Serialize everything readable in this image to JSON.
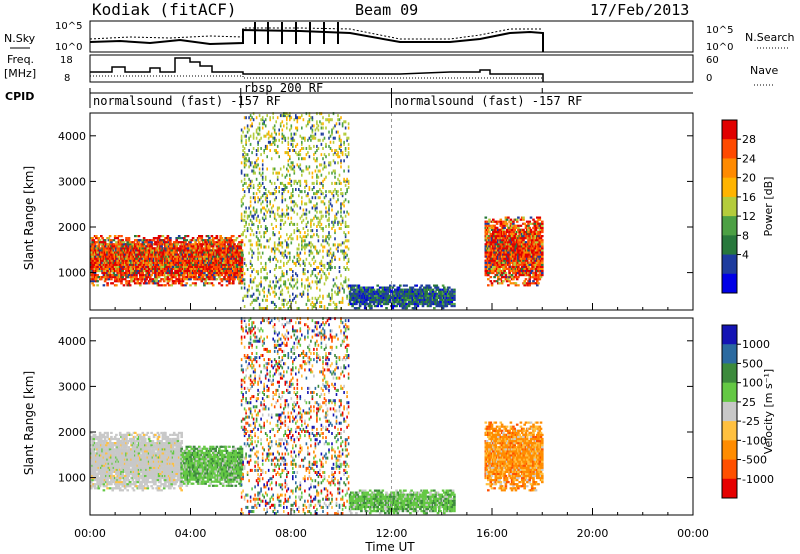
{
  "header": {
    "station": "Kodiak (fitACF)",
    "beam": "Beam 09",
    "date": "17/Feb/2013"
  },
  "panels": {
    "nsky_label": "N.Sky",
    "nsky_tick_top": "10^5",
    "nsky_tick_bottom": "10^0",
    "nsearch_label": "N.Search",
    "freq_label_1": "Freq.",
    "freq_label_2": "[MHz]",
    "freq_ticks": [
      "18",
      "8"
    ],
    "nave_label": "Nave",
    "nave_ticks": [
      "60",
      "0"
    ],
    "cpid_label": "CPID",
    "cpid_segments": [
      {
        "label": "normalsound (fast) -157 RF",
        "start_hour": 0
      },
      {
        "label": "rbsp 200 RF",
        "start_hour": 6
      },
      {
        "label": "normalsound (fast) -157 RF",
        "start_hour": 12
      }
    ]
  },
  "axes": {
    "xlabel": "Time UT",
    "xticks": [
      "00:00",
      "04:00",
      "08:00",
      "12:00",
      "16:00",
      "20:00",
      "00:00"
    ],
    "ylabel": "Slant Range [km]",
    "yticks": [
      1000,
      2000,
      3000,
      4000
    ]
  },
  "colorbars": {
    "power": {
      "label": "Power [dB]",
      "ticks": [
        "28",
        "24",
        "20",
        "16",
        "12",
        "8",
        "4"
      ],
      "colors": [
        "#e00000",
        "#ff4a00",
        "#ff8a00",
        "#ffb400",
        "#b4cc3c",
        "#4ca044",
        "#28783c",
        "#1e3c9e",
        "#0000e6"
      ]
    },
    "velocity": {
      "label": "Velocity [m s⁻¹]",
      "ticks": [
        "1000",
        "500",
        "100",
        "25",
        "-25",
        "-100",
        "-500",
        "-1000"
      ],
      "colors": [
        "#1414b4",
        "#2b6aa0",
        "#3c8a3c",
        "#64c844",
        "#c8c8c8",
        "#ffc040",
        "#ff8c00",
        "#ff5000",
        "#e60000"
      ]
    }
  },
  "chart_data": {
    "type": "heatmap",
    "x_range_hours": [
      0,
      24
    ],
    "y_range_km": [
      180,
      4500
    ],
    "power_regions": [
      {
        "t0": 0.0,
        "t1": 6.0,
        "r0": 700,
        "r1": 1800,
        "kind": "power-strong"
      },
      {
        "t0": 6.0,
        "t1": 10.3,
        "r0": 200,
        "r1": 4500,
        "kind": "power-sparse"
      },
      {
        "t0": 10.3,
        "t1": 14.5,
        "r0": 200,
        "r1": 700,
        "kind": "power-low"
      },
      {
        "t0": 15.7,
        "t1": 18.0,
        "r0": 700,
        "r1": 2200,
        "kind": "power-strong"
      }
    ],
    "velocity_regions": [
      {
        "t0": 0.0,
        "t1": 3.6,
        "r0": 700,
        "r1": 2000,
        "kind": "vel-gray"
      },
      {
        "t0": 3.6,
        "t1": 6.0,
        "r0": 800,
        "r1": 1700,
        "kind": "vel-green"
      },
      {
        "t0": 6.0,
        "t1": 10.3,
        "r0": 200,
        "r1": 4500,
        "kind": "vel-sparse"
      },
      {
        "t0": 10.3,
        "t1": 14.5,
        "r0": 200,
        "r1": 700,
        "kind": "vel-green"
      },
      {
        "t0": 15.7,
        "t1": 18.0,
        "r0": 700,
        "r1": 2200,
        "kind": "vel-orange"
      }
    ]
  }
}
